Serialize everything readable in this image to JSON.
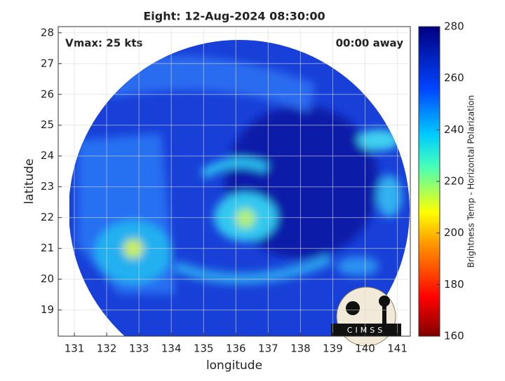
{
  "chart_data": {
    "type": "heatmap",
    "title": "Eight: 12-Aug-2024 08:30:00",
    "x_label": "longitude",
    "y_label": "latitude",
    "xlim": [
      130.5,
      141.4
    ],
    "xticks": [
      131,
      132,
      133,
      134,
      135,
      136,
      137,
      138,
      139,
      140,
      141
    ],
    "ylim": [
      18.15,
      28.2
    ],
    "yticks": [
      19,
      20,
      21,
      22,
      23,
      24,
      25,
      26,
      27,
      28
    ],
    "grid": true,
    "annotations": [
      "Vmax: 25 kts",
      "00:00 away"
    ],
    "colorbar": {
      "label": "Brightness Temp - Horizontal Polarization",
      "lim": [
        160,
        280
      ],
      "ticks": [
        160,
        180,
        200,
        220,
        240,
        260,
        280
      ]
    },
    "logo": "CIMSS"
  }
}
